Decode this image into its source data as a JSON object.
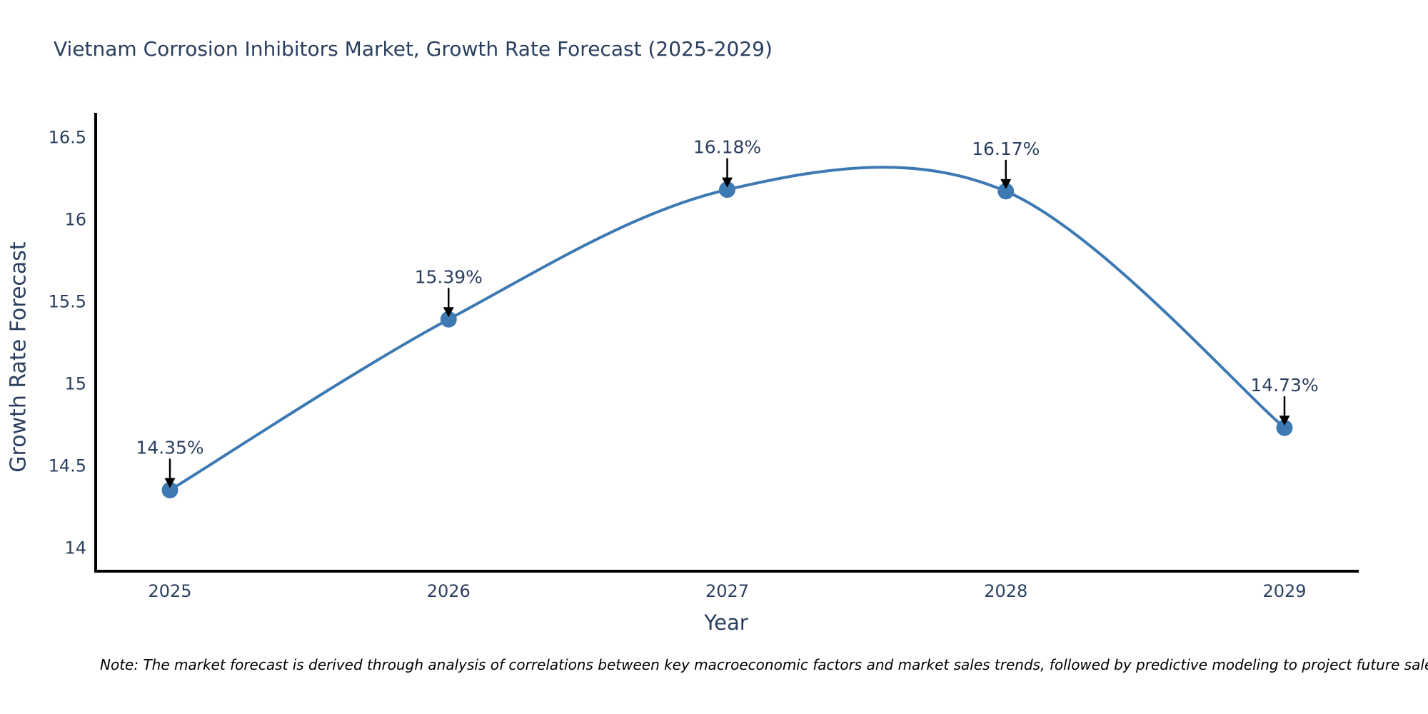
{
  "page": {
    "background": "#ffffff"
  },
  "chart_data": {
    "type": "line",
    "title": "Vietnam Corrosion Inhibitors Market, Growth Rate Forecast (2025-2029)",
    "xlabel": "Year",
    "ylabel": "Growth Rate Forecast",
    "x": [
      2025,
      2026,
      2027,
      2028,
      2029
    ],
    "x_tick_labels": [
      "2025",
      "2026",
      "2027",
      "2028",
      "2029"
    ],
    "series": [
      {
        "name": "Growth Rate Forecast",
        "values": [
          14.35,
          15.39,
          16.18,
          16.17,
          14.73
        ]
      }
    ],
    "point_labels": [
      "14.35%",
      "15.39%",
      "16.18%",
      "16.17%",
      "14.73%"
    ],
    "y_ticks": [
      14,
      14.5,
      15,
      15.5,
      16,
      16.5
    ],
    "y_tick_labels": [
      "14",
      "14.5",
      "15",
      "15.5",
      "16",
      "16.5"
    ],
    "ylim": [
      13.86,
      16.64
    ],
    "xlim": [
      2024.73,
      2029.26
    ],
    "line_shape": "spline",
    "grid": false,
    "legend_position": "none",
    "annotation_style": "value label above point with downward black arrow",
    "colors": {
      "line": "#3d79b2",
      "marker": "#3d79b2",
      "axis": "#000000",
      "tick_text": "#2a3f5f",
      "title_text": "#2a3f5f",
      "annotation_text": "#2a3f5f",
      "annotation_arrow": "#000000",
      "note_text": "#000000"
    }
  },
  "note": "Note: The market forecast is derived through analysis of correlations between key macroeconomic factors and market sales trends, followed by predictive modeling to project future sales"
}
